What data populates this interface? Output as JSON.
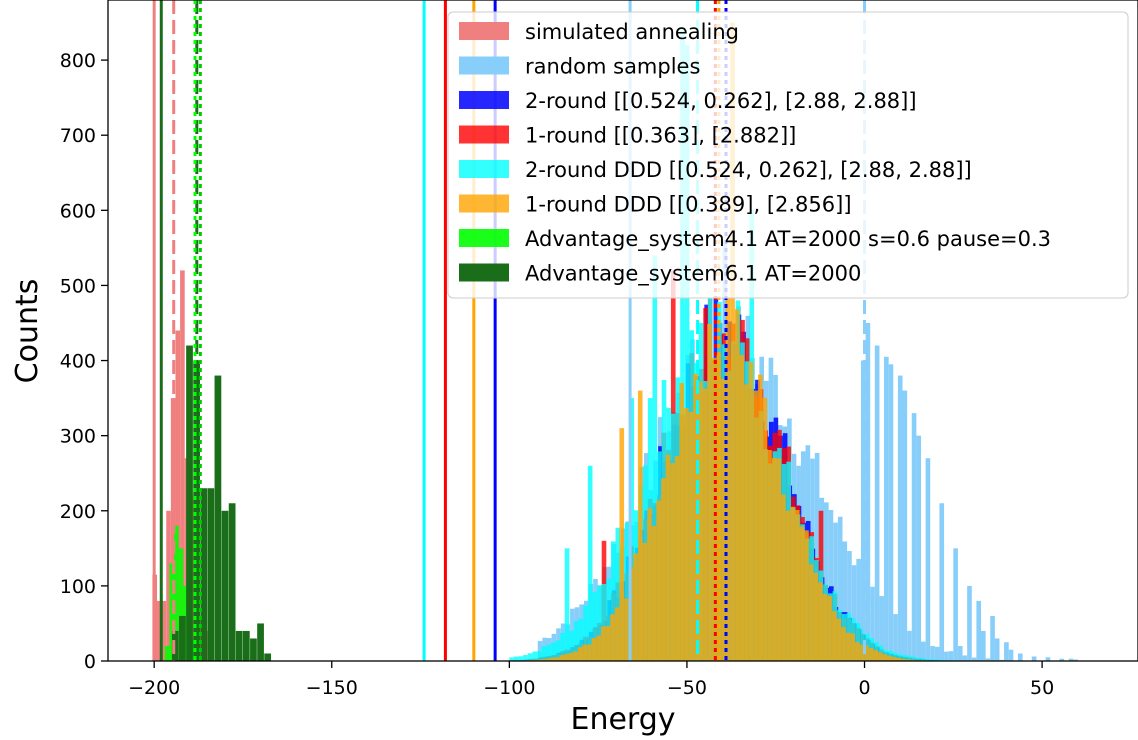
{
  "chart_data": {
    "type": "histogram",
    "title": "",
    "xlabel": "Energy",
    "ylabel": "Counts",
    "xlim": [
      -213,
      77
    ],
    "ylim": [
      0,
      880
    ],
    "grid": false,
    "legend_position": "top-right",
    "x_ticks": [
      -200,
      -150,
      -100,
      -50,
      0,
      50
    ],
    "x_tick_labels": [
      "−200",
      "−150",
      "−100",
      "−50",
      "0",
      "50"
    ],
    "y_ticks": [
      0,
      100,
      200,
      300,
      400,
      500,
      600,
      700,
      800
    ],
    "y_tick_labels": [
      "0",
      "100",
      "200",
      "300",
      "400",
      "500",
      "600",
      "700",
      "800"
    ],
    "series": [
      {
        "name": "random samples",
        "color": "#87cefa",
        "opacity": 1.0,
        "bin_width": 1.3,
        "mean": -38,
        "sd": 23,
        "peak": 420,
        "spike_extra": [
          [
            -42,
            120
          ],
          [
            -40,
            160
          ],
          [
            -38,
            120
          ],
          [
            -50,
            80
          ],
          [
            -2,
            20
          ],
          [
            0,
            10
          ],
          [
            2,
            10
          ]
        ],
        "range": [
          -92,
          60
        ],
        "hist_ranges": [
          [
            -92,
            60
          ]
        ],
        "overrides": [
          [
            -1,
            400
          ],
          [
            0,
            440
          ],
          [
            1,
            430
          ],
          [
            3,
            420
          ],
          [
            5,
            405
          ],
          [
            7,
            395
          ],
          [
            9,
            380
          ],
          [
            11,
            360
          ],
          [
            13,
            330
          ],
          [
            15,
            300
          ],
          [
            17,
            270
          ],
          [
            19,
            240
          ],
          [
            21,
            210
          ],
          [
            23,
            180
          ],
          [
            25,
            150
          ],
          [
            26,
            20
          ],
          [
            27,
            110
          ],
          [
            29,
            100
          ],
          [
            31,
            80
          ],
          [
            33,
            40
          ],
          [
            35,
            60
          ],
          [
            37,
            30
          ],
          [
            39,
            25
          ],
          [
            41,
            15
          ],
          [
            43,
            10
          ],
          [
            45,
            8
          ],
          [
            47,
            6
          ],
          [
            49,
            5
          ],
          [
            51,
            5
          ],
          [
            53,
            4
          ],
          [
            55,
            3
          ],
          [
            57,
            3
          ],
          [
            59,
            2
          ]
        ]
      },
      {
        "name": "simulated annealing",
        "color": "#f08080",
        "opacity": 1.0,
        "bin_width": 1.3,
        "bars": [
          [
            -200.5,
            115
          ],
          [
            -199.2,
            80
          ],
          [
            -197.9,
            80
          ],
          [
            -196.6,
            200
          ],
          [
            -195.3,
            350
          ],
          [
            -194,
            440
          ],
          [
            -192.7,
            520
          ],
          [
            -191.4,
            270
          ],
          [
            -190.1,
            220
          ],
          [
            -188.8,
            100
          ],
          [
            -187.5,
            60
          ],
          [
            -186.2,
            40
          ]
        ]
      },
      {
        "name": "2-round [[0.524, 0.262], [2.88, 2.88]]",
        "color": "#0000ff",
        "opacity": 0.85,
        "bin_width": 1.3,
        "mean": -40,
        "sd": 17,
        "peak": 440,
        "range": [
          -101,
          30
        ]
      },
      {
        "name": "1-round [[0.363], [2.882]]",
        "color": "#ff0000",
        "opacity": 0.8,
        "bin_width": 1.3,
        "mean": -40,
        "sd": 17,
        "peak": 440,
        "range": [
          -100,
          30
        ],
        "overrides": [
          [
            -55,
            520
          ],
          [
            -45,
            470
          ],
          [
            -74,
            160
          ],
          [
            -13,
            200
          ],
          [
            -42,
            450
          ]
        ]
      },
      {
        "name": "2-round DDD [[0.524, 0.262], [2.88, 2.88]]",
        "color": "#00ffff",
        "opacity": 0.8,
        "bin_width": 1.3,
        "mean": -43,
        "sd": 19,
        "peak": 430,
        "range": [
          -100,
          25
        ],
        "overrides": [
          [
            -52,
            840
          ],
          [
            -51,
            820
          ],
          [
            -50,
            480
          ],
          [
            -33,
            840
          ],
          [
            -32,
            600
          ],
          [
            -36,
            480
          ],
          [
            -47,
            450
          ],
          [
            -60,
            540
          ],
          [
            -61,
            350
          ],
          [
            -66,
            350
          ],
          [
            -78,
            260
          ],
          [
            -80,
            160
          ],
          [
            -84,
            150
          ],
          [
            -76,
            110
          ]
        ]
      },
      {
        "name": "1-round DDD [[0.389], [2.856]]",
        "color": "#ffa500",
        "opacity": 0.8,
        "bin_width": 1.3,
        "mean": -40,
        "sd": 16,
        "peak": 430,
        "range": [
          -95,
          28
        ],
        "overrides": [
          [
            -38,
            850
          ],
          [
            -41,
            600
          ],
          [
            -64,
            360
          ],
          [
            -69,
            310
          ]
        ]
      },
      {
        "name": "Advantage_system4.1 AT=2000 s=0.6 pause=0.3",
        "color": "#00ff00",
        "opacity": 0.9,
        "bin_width": 1.3,
        "bars": [
          [
            -197,
            20
          ],
          [
            -195.7,
            130
          ],
          [
            -194.4,
            180
          ],
          [
            -193.1,
            150
          ],
          [
            -191.8,
            100
          ],
          [
            -190.5,
            60
          ],
          [
            -189.2,
            30
          ]
        ]
      },
      {
        "name": "Advantage_system6.1 AT=2000",
        "color": "#1a6e1a",
        "opacity": 1.0,
        "bin_width": 1.9,
        "bars": [
          [
            -195,
            40
          ],
          [
            -193,
            60
          ],
          [
            -191,
            420
          ],
          [
            -189,
            400
          ],
          [
            -187,
            230
          ],
          [
            -185,
            230
          ],
          [
            -183,
            380
          ],
          [
            -181,
            200
          ],
          [
            -179,
            210
          ],
          [
            -177,
            40
          ],
          [
            -175,
            40
          ],
          [
            -173,
            30
          ],
          [
            -171,
            50
          ],
          [
            -169,
            10
          ]
        ]
      }
    ],
    "vertical_lines": [
      {
        "x": -200,
        "color": "#f08080",
        "style": "solid"
      },
      {
        "x": -194.5,
        "color": "#f08080",
        "style": "dashed"
      },
      {
        "x": -198,
        "color": "#1a6e1a",
        "style": "solid"
      },
      {
        "x": -188,
        "color": "#1a6e1a",
        "style": "dashed"
      },
      {
        "x": -187,
        "color": "#00cc00",
        "style": "dotted"
      },
      {
        "x": -188.5,
        "color": "#00ff00",
        "style": "dotted"
      },
      {
        "x": -124,
        "color": "#00ffff",
        "style": "solid"
      },
      {
        "x": -118,
        "color": "#ff0000",
        "style": "solid"
      },
      {
        "x": -110,
        "color": "#ffa500",
        "style": "solid"
      },
      {
        "x": -104,
        "color": "#0000ff",
        "style": "solid"
      },
      {
        "x": -66,
        "color": "#87cefa",
        "style": "solid"
      },
      {
        "x": -47,
        "color": "#00ffff",
        "style": "dashed"
      },
      {
        "x": -42,
        "color": "#ff0000",
        "style": "dotted"
      },
      {
        "x": -41,
        "color": "#ffa500",
        "style": "dotted"
      },
      {
        "x": -39,
        "color": "#0000ff",
        "style": "dotted"
      },
      {
        "x": 0,
        "color": "#87cefa",
        "style": "dashed"
      }
    ]
  }
}
